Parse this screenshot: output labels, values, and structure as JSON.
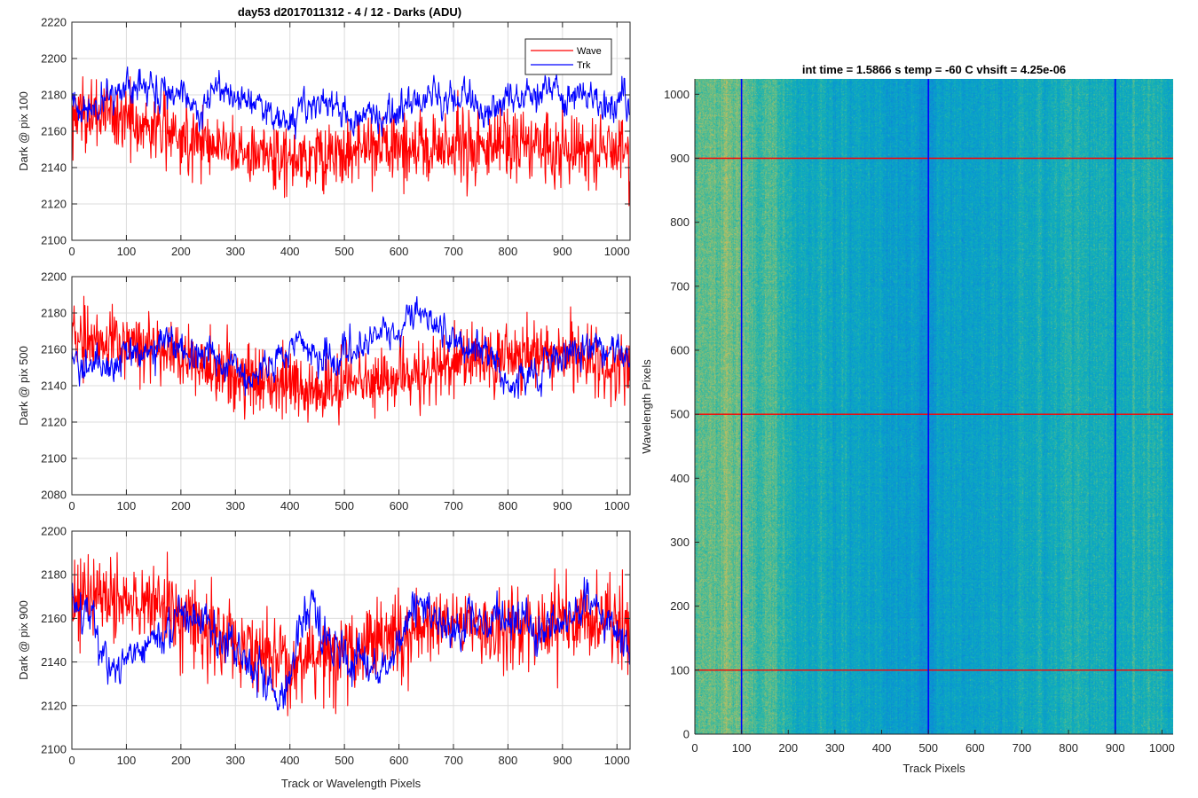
{
  "figure_title": "day53 d2017011312 - 4 / 12 - Darks (ADU)",
  "chart_data": [
    {
      "type": "line",
      "title": "day53 d2017011312 - 4 / 12 - Darks (ADU)",
      "xlabel": "",
      "ylabel": "Dark @ pix 100",
      "xlim": [
        0,
        1024
      ],
      "ylim": [
        2100,
        2220
      ],
      "xticks": [
        0,
        100,
        200,
        300,
        400,
        500,
        600,
        700,
        800,
        900,
        1000
      ],
      "yticks": [
        2100,
        2120,
        2140,
        2160,
        2180,
        2200,
        2220
      ],
      "grid": true,
      "legend": {
        "position": "top-right",
        "entries": [
          "Wave",
          "Trk"
        ]
      },
      "series": [
        {
          "name": "Wave",
          "color": "#ff0000",
          "n_points": 1024,
          "trend": [
            [
              0,
              2168
            ],
            [
              50,
              2170
            ],
            [
              100,
              2167
            ],
            [
              150,
              2162
            ],
            [
              200,
              2158
            ],
            [
              250,
              2154
            ],
            [
              300,
              2150
            ],
            [
              350,
              2147
            ],
            [
              400,
              2146
            ],
            [
              450,
              2147
            ],
            [
              500,
              2148
            ],
            [
              550,
              2150
            ],
            [
              600,
              2151
            ],
            [
              650,
              2150
            ],
            [
              700,
              2152
            ],
            [
              750,
              2153
            ],
            [
              800,
              2153
            ],
            [
              850,
              2152
            ],
            [
              900,
              2151
            ],
            [
              950,
              2150
            ],
            [
              1000,
              2150
            ],
            [
              1023,
              2150
            ]
          ],
          "noise_sd": 9.5,
          "range": [
            2103,
            2190
          ]
        },
        {
          "name": "Trk",
          "color": "#0000ff",
          "n_points": 1024,
          "trend": [
            [
              0,
              2176
            ],
            [
              40,
              2172
            ],
            [
              70,
              2182
            ],
            [
              100,
              2185
            ],
            [
              130,
              2186
            ],
            [
              160,
              2184
            ],
            [
              200,
              2180
            ],
            [
              230,
              2170
            ],
            [
              260,
              2183
            ],
            [
              300,
              2180
            ],
            [
              340,
              2176
            ],
            [
              370,
              2168
            ],
            [
              390,
              2165
            ],
            [
              420,
              2170
            ],
            [
              450,
              2177
            ],
            [
              480,
              2172
            ],
            [
              520,
              2166
            ],
            [
              560,
              2170
            ],
            [
              600,
              2170
            ],
            [
              640,
              2180
            ],
            [
              680,
              2178
            ],
            [
              720,
              2178
            ],
            [
              760,
              2168
            ],
            [
              800,
              2178
            ],
            [
              840,
              2182
            ],
            [
              880,
              2184
            ],
            [
              920,
              2178
            ],
            [
              960,
              2176
            ],
            [
              1000,
              2175
            ],
            [
              1023,
              2176
            ]
          ],
          "noise_sd": 4,
          "range": [
            2155,
            2199
          ]
        }
      ]
    },
    {
      "type": "line",
      "title": "",
      "xlabel": "",
      "ylabel": "Dark @ pix 500",
      "xlim": [
        0,
        1024
      ],
      "ylim": [
        2080,
        2200
      ],
      "xticks": [
        0,
        100,
        200,
        300,
        400,
        500,
        600,
        700,
        800,
        900,
        1000
      ],
      "yticks": [
        2080,
        2100,
        2120,
        2140,
        2160,
        2180,
        2200
      ],
      "grid": true,
      "series": [
        {
          "name": "Wave",
          "color": "#ff0000",
          "n_points": 1024,
          "trend": [
            [
              0,
              2165
            ],
            [
              50,
              2165
            ],
            [
              100,
              2162
            ],
            [
              150,
              2160
            ],
            [
              200,
              2156
            ],
            [
              250,
              2150
            ],
            [
              300,
              2146
            ],
            [
              350,
              2142
            ],
            [
              400,
              2140
            ],
            [
              450,
              2138
            ],
            [
              500,
              2140
            ],
            [
              550,
              2142
            ],
            [
              600,
              2146
            ],
            [
              650,
              2150
            ],
            [
              700,
              2152
            ],
            [
              750,
              2155
            ],
            [
              800,
              2158
            ],
            [
              850,
              2160
            ],
            [
              900,
              2158
            ],
            [
              950,
              2152
            ],
            [
              1000,
              2148
            ],
            [
              1023,
              2150
            ]
          ],
          "noise_sd": 9,
          "range": [
            2097,
            2191
          ]
        },
        {
          "name": "Trk",
          "color": "#0000ff",
          "n_points": 1024,
          "trend": [
            [
              0,
              2160
            ],
            [
              20,
              2148
            ],
            [
              60,
              2148
            ],
            [
              90,
              2158
            ],
            [
              150,
              2162
            ],
            [
              200,
              2160
            ],
            [
              260,
              2156
            ],
            [
              300,
              2150
            ],
            [
              340,
              2145
            ],
            [
              380,
              2158
            ],
            [
              420,
              2165
            ],
            [
              450,
              2158
            ],
            [
              480,
              2152
            ],
            [
              520,
              2160
            ],
            [
              560,
              2172
            ],
            [
              600,
              2168
            ],
            [
              620,
              2178
            ],
            [
              650,
              2180
            ],
            [
              680,
              2170
            ],
            [
              720,
              2165
            ],
            [
              760,
              2160
            ],
            [
              790,
              2145
            ],
            [
              820,
              2140
            ],
            [
              860,
              2148
            ],
            [
              900,
              2156
            ],
            [
              950,
              2162
            ],
            [
              1000,
              2160
            ],
            [
              1023,
              2158
            ]
          ],
          "noise_sd": 4,
          "range": [
            2124,
            2189
          ]
        }
      ]
    },
    {
      "type": "line",
      "title": "",
      "xlabel": "Track or Wavelength Pixels",
      "ylabel": "Dark @ pix 900",
      "xlim": [
        0,
        1024
      ],
      "ylim": [
        2100,
        2200
      ],
      "xticks": [
        0,
        100,
        200,
        300,
        400,
        500,
        600,
        700,
        800,
        900,
        1000
      ],
      "yticks": [
        2100,
        2120,
        2140,
        2160,
        2180,
        2200
      ],
      "grid": true,
      "series": [
        {
          "name": "Wave",
          "color": "#ff0000",
          "n_points": 1024,
          "trend": [
            [
              0,
              2168
            ],
            [
              50,
              2170
            ],
            [
              100,
              2168
            ],
            [
              150,
              2166
            ],
            [
              200,
              2160
            ],
            [
              250,
              2154
            ],
            [
              300,
              2148
            ],
            [
              350,
              2142
            ],
            [
              400,
              2140
            ],
            [
              450,
              2142
            ],
            [
              500,
              2146
            ],
            [
              550,
              2150
            ],
            [
              600,
              2154
            ],
            [
              650,
              2156
            ],
            [
              700,
              2158
            ],
            [
              750,
              2156
            ],
            [
              800,
              2154
            ],
            [
              850,
              2156
            ],
            [
              900,
              2160
            ],
            [
              950,
              2160
            ],
            [
              1000,
              2158
            ],
            [
              1023,
              2158
            ]
          ],
          "noise_sd": 9,
          "range": [
            2101,
            2193
          ]
        },
        {
          "name": "Trk",
          "color": "#0000ff",
          "n_points": 1024,
          "trend": [
            [
              0,
              2168
            ],
            [
              40,
              2160
            ],
            [
              70,
              2140
            ],
            [
              90,
              2132
            ],
            [
              120,
              2150
            ],
            [
              160,
              2150
            ],
            [
              200,
              2162
            ],
            [
              240,
              2158
            ],
            [
              270,
              2148
            ],
            [
              300,
              2148
            ],
            [
              330,
              2140
            ],
            [
              360,
              2130
            ],
            [
              380,
              2123
            ],
            [
              400,
              2132
            ],
            [
              420,
              2158
            ],
            [
              440,
              2168
            ],
            [
              460,
              2150
            ],
            [
              500,
              2142
            ],
            [
              540,
              2138
            ],
            [
              580,
              2138
            ],
            [
              620,
              2160
            ],
            [
              640,
              2168
            ],
            [
              670,
              2158
            ],
            [
              700,
              2155
            ],
            [
              740,
              2158
            ],
            [
              780,
              2158
            ],
            [
              820,
              2158
            ],
            [
              850,
              2152
            ],
            [
              880,
              2156
            ],
            [
              920,
              2165
            ],
            [
              950,
              2168
            ],
            [
              980,
              2160
            ],
            [
              1010,
              2152
            ],
            [
              1023,
              2145
            ]
          ],
          "noise_sd": 4,
          "range": [
            2118,
            2182
          ]
        }
      ]
    },
    {
      "type": "heatmap",
      "title": "int time = 1.5866 s    temp = -60 C    vhsift = 4.25e-06",
      "xlabel": "Track Pixels",
      "ylabel": "Wavelength Pixels",
      "xlim": [
        0,
        1024
      ],
      "ylim": [
        0,
        1024
      ],
      "xticks": [
        0,
        100,
        200,
        300,
        400,
        500,
        600,
        700,
        800,
        900,
        1000
      ],
      "yticks": [
        0,
        100,
        200,
        300,
        400,
        500,
        600,
        700,
        800,
        900,
        1000
      ],
      "grid": false,
      "colormap": "parula",
      "column_profile": [
        [
          0,
          0.62
        ],
        [
          40,
          0.66
        ],
        [
          80,
          0.66
        ],
        [
          110,
          0.64
        ],
        [
          150,
          0.6
        ],
        [
          200,
          0.45
        ],
        [
          260,
          0.4
        ],
        [
          320,
          0.36
        ],
        [
          380,
          0.32
        ],
        [
          440,
          0.3
        ],
        [
          500,
          0.27
        ],
        [
          540,
          0.3
        ],
        [
          600,
          0.33
        ],
        [
          660,
          0.36
        ],
        [
          720,
          0.38
        ],
        [
          780,
          0.42
        ],
        [
          840,
          0.45
        ],
        [
          900,
          0.43
        ],
        [
          960,
          0.45
        ],
        [
          1024,
          0.42
        ]
      ],
      "markers": {
        "vertical_lines": {
          "x": [
            100,
            500,
            900
          ],
          "color": "#0000ff"
        },
        "horizontal_lines": {
          "y": [
            100,
            500,
            900
          ],
          "color": "#ff0000"
        }
      }
    }
  ]
}
